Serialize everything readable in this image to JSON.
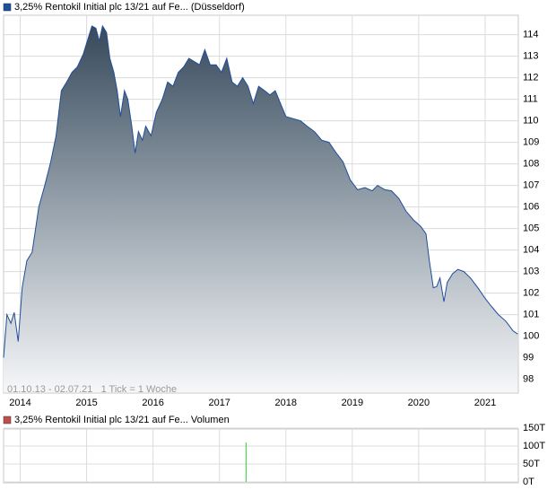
{
  "chart_data": [
    {
      "type": "area",
      "legend": "3,25% Rentokil Initial plc 13/21 auf Fe... (Düsseldorf)",
      "legend_color": "#1f4e9a",
      "note": "01.10.13 - 02.07.21   1 Tick = 1 Woche",
      "color": "#1f4e9a",
      "x": [
        2013.75,
        2013.8,
        2013.86,
        2013.91,
        2013.97,
        2014.03,
        2014.1,
        2014.18,
        2014.28,
        2014.37,
        2014.46,
        2014.54,
        2014.62,
        2014.7,
        2014.78,
        2014.86,
        2014.95,
        2015.03,
        2015.08,
        2015.14,
        2015.19,
        2015.24,
        2015.3,
        2015.35,
        2015.41,
        2015.46,
        2015.51,
        2015.57,
        2015.62,
        2015.68,
        2015.73,
        2015.78,
        2015.84,
        2015.89,
        2015.97,
        2016.05,
        2016.14,
        2016.22,
        2016.3,
        2016.38,
        2016.46,
        2016.54,
        2016.62,
        2016.7,
        2016.78,
        2016.86,
        2016.95,
        2017.03,
        2017.11,
        2017.19,
        2017.27,
        2017.35,
        2017.43,
        2017.51,
        2017.59,
        2017.68,
        2017.76,
        2017.84,
        2017.92,
        2018.0,
        2018.11,
        2018.22,
        2018.32,
        2018.43,
        2018.54,
        2018.65,
        2018.76,
        2018.86,
        2018.97,
        2019.08,
        2019.19,
        2019.3,
        2019.38,
        2019.49,
        2019.59,
        2019.7,
        2019.81,
        2019.92,
        2020.03,
        2020.11,
        2020.16,
        2020.22,
        2020.27,
        2020.32,
        2020.38,
        2020.43,
        2020.51,
        2020.59,
        2020.68,
        2020.78,
        2020.89,
        2020.99,
        2021.09,
        2021.2,
        2021.31,
        2021.42,
        2021.49
      ],
      "values": [
        99.0,
        101.0,
        100.6,
        101.1,
        99.75,
        102.25,
        103.5,
        103.9,
        106.0,
        107.0,
        108.1,
        109.3,
        111.4,
        111.8,
        112.25,
        112.5,
        113.1,
        113.9,
        114.4,
        114.3,
        113.7,
        114.4,
        114.1,
        112.9,
        112.25,
        111.4,
        110.2,
        111.4,
        111.0,
        109.75,
        108.5,
        109.5,
        109.1,
        109.75,
        109.3,
        110.4,
        111.0,
        111.8,
        111.6,
        112.25,
        112.5,
        112.9,
        112.75,
        112.6,
        113.3,
        112.6,
        112.6,
        112.25,
        112.9,
        111.8,
        111.6,
        112.0,
        111.6,
        110.8,
        111.6,
        111.4,
        111.2,
        111.4,
        110.8,
        110.2,
        110.1,
        110.0,
        109.75,
        109.5,
        109.1,
        109.0,
        108.5,
        108.1,
        107.25,
        106.8,
        106.9,
        106.75,
        107.0,
        106.8,
        106.75,
        106.4,
        105.8,
        105.4,
        105.1,
        104.75,
        103.5,
        102.25,
        102.3,
        102.7,
        101.6,
        102.5,
        102.9,
        103.1,
        103.0,
        102.7,
        102.25,
        101.8,
        101.4,
        101.0,
        100.7,
        100.25,
        100.1
      ],
      "xlim": [
        2013.75,
        2021.5
      ],
      "xticks": [
        2014,
        2015,
        2016,
        2017,
        2018,
        2019,
        2020,
        2021
      ],
      "ylim": [
        97.4,
        114.9
      ],
      "yticks": [
        98,
        99,
        100,
        101,
        102,
        103,
        104,
        105,
        106,
        107,
        108,
        109,
        110,
        111,
        112,
        113,
        114
      ],
      "grid": true
    },
    {
      "type": "bar",
      "legend": "3,25% Rentokil Initial plc 13/21 auf Fe... Volumen",
      "legend_color": "#c0504d",
      "color": "#33cc33",
      "x": [
        2017.4
      ],
      "values": [
        110000
      ],
      "xlim": [
        2013.75,
        2021.5
      ],
      "ylim": [
        0,
        150000
      ],
      "yticks": [
        {
          "value": 0,
          "label": "0T"
        },
        {
          "value": 50000,
          "label": "50T"
        },
        {
          "value": 100000,
          "label": "100T"
        },
        {
          "value": 150000,
          "label": "150T"
        }
      ],
      "grid": true
    }
  ]
}
